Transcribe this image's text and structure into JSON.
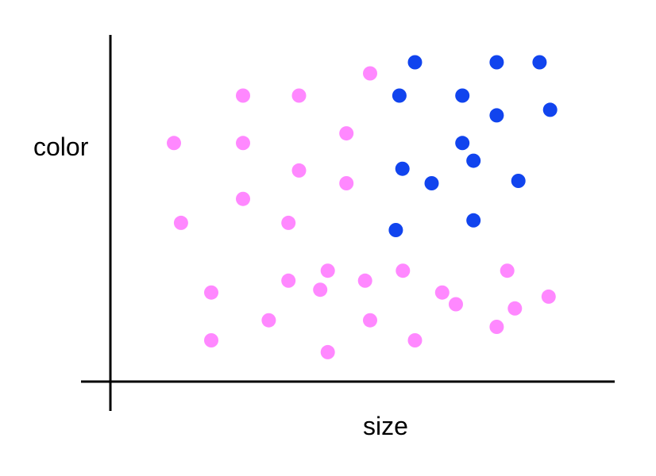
{
  "chart_data": {
    "type": "scatter",
    "title": "",
    "xlabel": "size",
    "ylabel": "color",
    "xlim": [
      0,
      100
    ],
    "ylim": [
      0,
      100
    ],
    "grid": false,
    "legend": "none",
    "series": [
      {
        "color": "#ff88ff",
        "points": [
          {
            "x": 12.6,
            "y": 68.8
          },
          {
            "x": 26.3,
            "y": 82.5
          },
          {
            "x": 26.3,
            "y": 68.8
          },
          {
            "x": 37.4,
            "y": 82.5
          },
          {
            "x": 51.5,
            "y": 88.9
          },
          {
            "x": 46.8,
            "y": 71.6
          },
          {
            "x": 37.4,
            "y": 60.9
          },
          {
            "x": 46.8,
            "y": 57.2
          },
          {
            "x": 26.3,
            "y": 52.7
          },
          {
            "x": 14.0,
            "y": 45.8
          },
          {
            "x": 35.3,
            "y": 45.8
          },
          {
            "x": 43.1,
            "y": 32.0
          },
          {
            "x": 35.3,
            "y": 29.1
          },
          {
            "x": 41.6,
            "y": 26.5
          },
          {
            "x": 50.5,
            "y": 29.1
          },
          {
            "x": 58.0,
            "y": 32.0
          },
          {
            "x": 20.0,
            "y": 25.7
          },
          {
            "x": 31.4,
            "y": 17.7
          },
          {
            "x": 20.0,
            "y": 11.9
          },
          {
            "x": 43.1,
            "y": 8.5
          },
          {
            "x": 51.5,
            "y": 17.7
          },
          {
            "x": 60.4,
            "y": 11.9
          },
          {
            "x": 65.8,
            "y": 25.7
          },
          {
            "x": 68.5,
            "y": 22.3
          },
          {
            "x": 78.7,
            "y": 32.0
          },
          {
            "x": 86.9,
            "y": 24.5
          },
          {
            "x": 80.2,
            "y": 21.1
          },
          {
            "x": 76.6,
            "y": 15.8
          }
        ]
      },
      {
        "color": "#1144ee",
        "points": [
          {
            "x": 60.4,
            "y": 92.1
          },
          {
            "x": 76.6,
            "y": 92.1
          },
          {
            "x": 85.1,
            "y": 92.1
          },
          {
            "x": 57.3,
            "y": 82.5
          },
          {
            "x": 69.8,
            "y": 82.5
          },
          {
            "x": 76.6,
            "y": 76.8
          },
          {
            "x": 87.2,
            "y": 78.4
          },
          {
            "x": 69.8,
            "y": 68.8
          },
          {
            "x": 72.0,
            "y": 63.7
          },
          {
            "x": 57.9,
            "y": 61.4
          },
          {
            "x": 63.7,
            "y": 57.2
          },
          {
            "x": 80.9,
            "y": 57.9
          },
          {
            "x": 72.0,
            "y": 46.5
          },
          {
            "x": 56.6,
            "y": 43.7
          }
        ]
      }
    ]
  }
}
